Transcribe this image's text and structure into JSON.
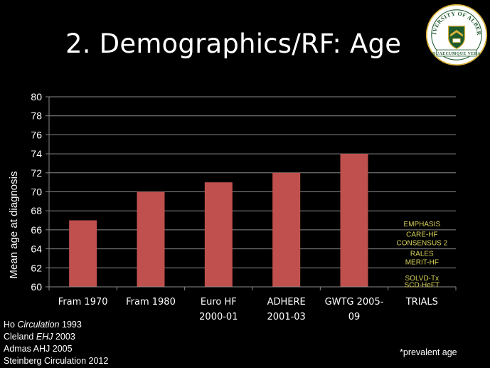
{
  "slide": {
    "title": "2. Demographics/RF: Age",
    "footnote": "*prevalent age"
  },
  "logo": {
    "name": "university-of-alberta-crest",
    "text": "UNIVERSITY OF ALBERTA",
    "motto": "QUAECUMQUE VERA",
    "colors": {
      "ring": "#ffffff",
      "green": "#1f5a2d",
      "gold": "#d9b23a"
    }
  },
  "references": [
    {
      "prefix": "Ho ",
      "journal": "Circulation",
      "suffix": " 1993"
    },
    {
      "prefix": "Cleland ",
      "journal": "EHJ",
      "suffix": " 2003"
    },
    {
      "prefix": "Admas AHJ 2005",
      "journal": "",
      "suffix": ""
    },
    {
      "prefix": "Steinberg Circulation 2012",
      "journal": "",
      "suffix": ""
    }
  ],
  "chart_data": {
    "type": "bar",
    "title": "",
    "xlabel": "",
    "ylabel": "Mean age at diagnosis",
    "ylim": [
      60,
      80
    ],
    "yticks": [
      60,
      62,
      64,
      66,
      68,
      70,
      72,
      74,
      76,
      78,
      80
    ],
    "grid": true,
    "categories": [
      [
        "Fram 1970"
      ],
      [
        "Fram 1980"
      ],
      [
        "Euro HF",
        "2000-01"
      ],
      [
        "ADHERE",
        "2001-03"
      ],
      [
        "GWTG 2005-",
        "09"
      ],
      [
        "TRIALS"
      ]
    ],
    "values": [
      67,
      70,
      71,
      72,
      74,
      null
    ],
    "bar_color": "#c0504d",
    "trial_annotations": [
      {
        "text": "EMPHASIS",
        "y": 66.6
      },
      {
        "text": "CARE-HF",
        "y": 65.5
      },
      {
        "text": "CONSENSUS 2",
        "y": 64.6
      },
      {
        "text": "RALES",
        "y": 63.5
      },
      {
        "text": "MERIT-HF",
        "y": 62.6
      },
      {
        "text": "SOLVD-Tx",
        "y": 60.9
      },
      {
        "text": "SCD-HeFT",
        "y": 60.2
      }
    ],
    "annotation_color": "#d8d35a"
  }
}
